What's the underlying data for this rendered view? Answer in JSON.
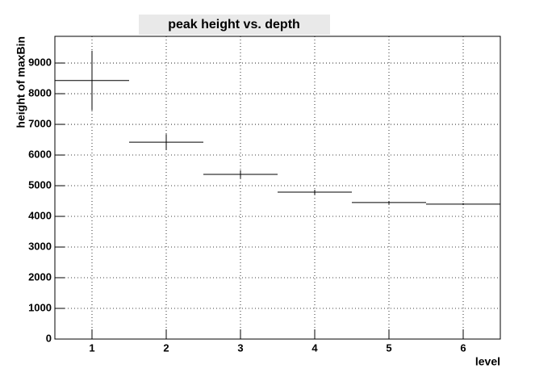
{
  "chart_data": {
    "type": "errorbar",
    "title": "peak height vs. depth",
    "x_label": "level",
    "y_label": "height of maxBin",
    "x": [
      1,
      2,
      3,
      4,
      5,
      6
    ],
    "xerr": [
      0.5,
      0.5,
      0.5,
      0.5,
      0.5,
      0.5
    ],
    "values": [
      8430,
      6420,
      5370,
      4790,
      4450,
      4400
    ],
    "errors": [
      970,
      260,
      130,
      80,
      50,
      30
    ],
    "color": "#000000",
    "xlim": [
      0.5,
      6.5
    ],
    "xticks": [
      1,
      2,
      3,
      4,
      5,
      6
    ],
    "ylim": [
      0,
      9870
    ],
    "yticks": [
      0,
      1000,
      2000,
      3000,
      4000,
      5000,
      6000,
      7000,
      8000,
      9000
    ],
    "grid": true
  }
}
